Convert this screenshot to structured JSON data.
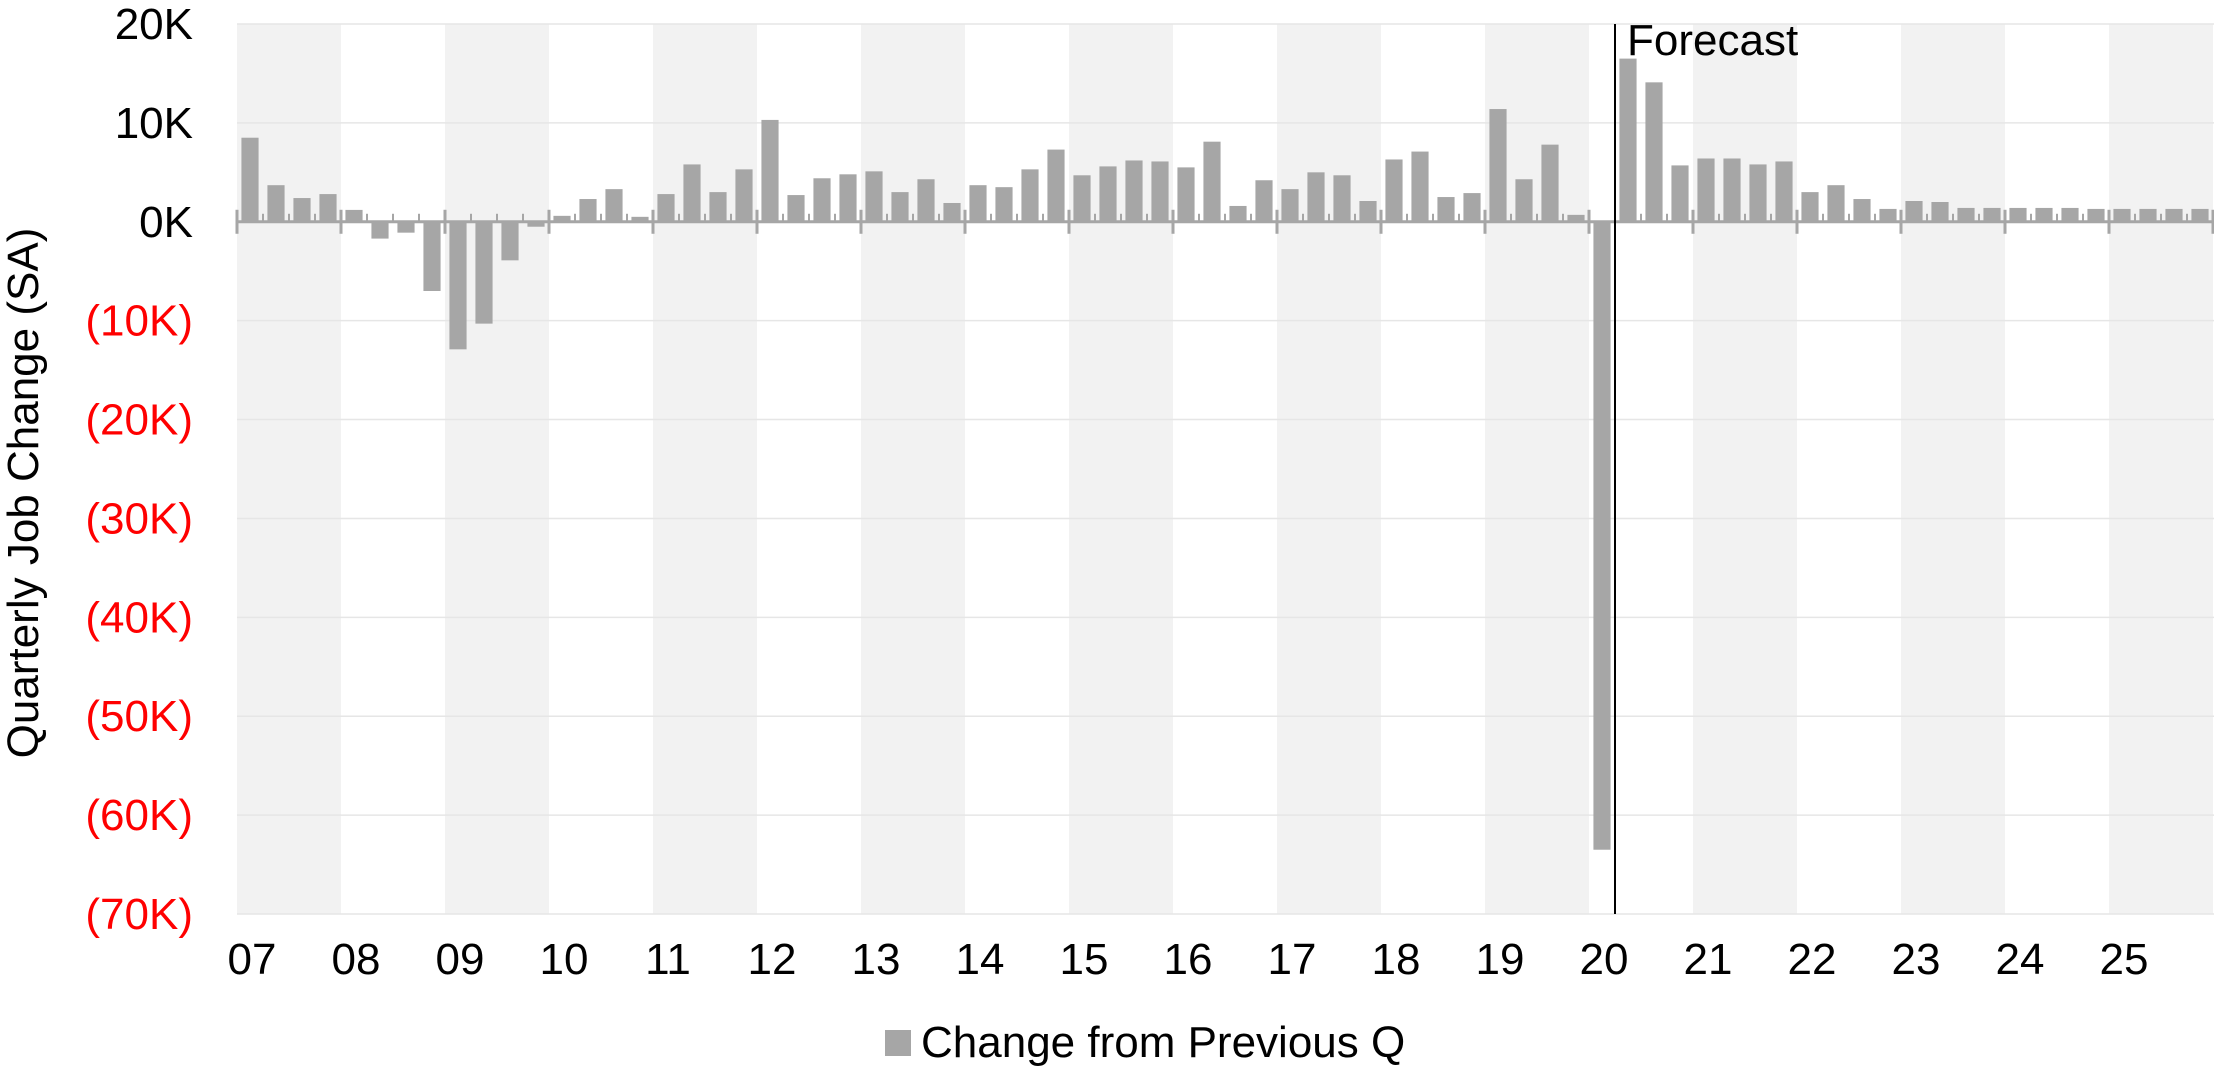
{
  "chart_data": {
    "type": "bar",
    "title": "",
    "ylabel": "Quarterly Job Change (SA)",
    "xlabel": "",
    "ylim": [
      -70000,
      20000
    ],
    "yticks": [
      {
        "value": 20000,
        "label": "20K",
        "color": "#000000"
      },
      {
        "value": 10000,
        "label": "10K",
        "color": "#000000"
      },
      {
        "value": 0,
        "label": "0K",
        "color": "#000000"
      },
      {
        "value": -10000,
        "label": "(10K)",
        "color": "#ff0000"
      },
      {
        "value": -20000,
        "label": "(20K)",
        "color": "#ff0000"
      },
      {
        "value": -30000,
        "label": "(30K)",
        "color": "#ff0000"
      },
      {
        "value": -40000,
        "label": "(40K)",
        "color": "#ff0000"
      },
      {
        "value": -50000,
        "label": "(50K)",
        "color": "#ff0000"
      },
      {
        "value": -60000,
        "label": "(60K)",
        "color": "#ff0000"
      },
      {
        "value": -70000,
        "label": "(70K)",
        "color": "#ff0000"
      }
    ],
    "year_labels": [
      "07",
      "08",
      "09",
      "10",
      "11",
      "12",
      "13",
      "14",
      "15",
      "16",
      "17",
      "18",
      "19",
      "20",
      "21",
      "22",
      "23",
      "24",
      "25"
    ],
    "grid": "horizontal",
    "shaded_year_bands": "alternating",
    "forecast_label": "Forecast",
    "forecast_after_quarter_index": 53,
    "series": [
      {
        "name": "Change from Previous Q",
        "color": "#a6a6a6",
        "values": [
          8500,
          3700,
          2400,
          2800,
          1200,
          -1700,
          -1100,
          -7000,
          -12900,
          -10300,
          -3900,
          -500,
          600,
          2300,
          3300,
          500,
          2800,
          5800,
          3000,
          5300,
          10300,
          2700,
          4400,
          4800,
          5100,
          3000,
          4300,
          1900,
          3700,
          3500,
          5300,
          7300,
          4700,
          5600,
          6200,
          6100,
          5500,
          8100,
          1600,
          4200,
          3300,
          5000,
          4700,
          2100,
          6300,
          7100,
          2500,
          2900,
          11400,
          4300,
          7800,
          700,
          -63500,
          16500,
          14100,
          5700,
          6400,
          6400,
          5800,
          6100,
          3000,
          3700,
          2300,
          1300,
          2100,
          2000,
          1400,
          1400,
          1400,
          1400,
          1400,
          1300,
          1300,
          1300,
          1300,
          1300,
          1300
        ]
      }
    ],
    "legend_position": "bottom-center"
  },
  "colors": {
    "bar": "#a6a6a6",
    "band": "#f2f2f2",
    "grid": "#e6e6e6",
    "axis": "#a6a6a6",
    "forecast_line": "#000000"
  }
}
